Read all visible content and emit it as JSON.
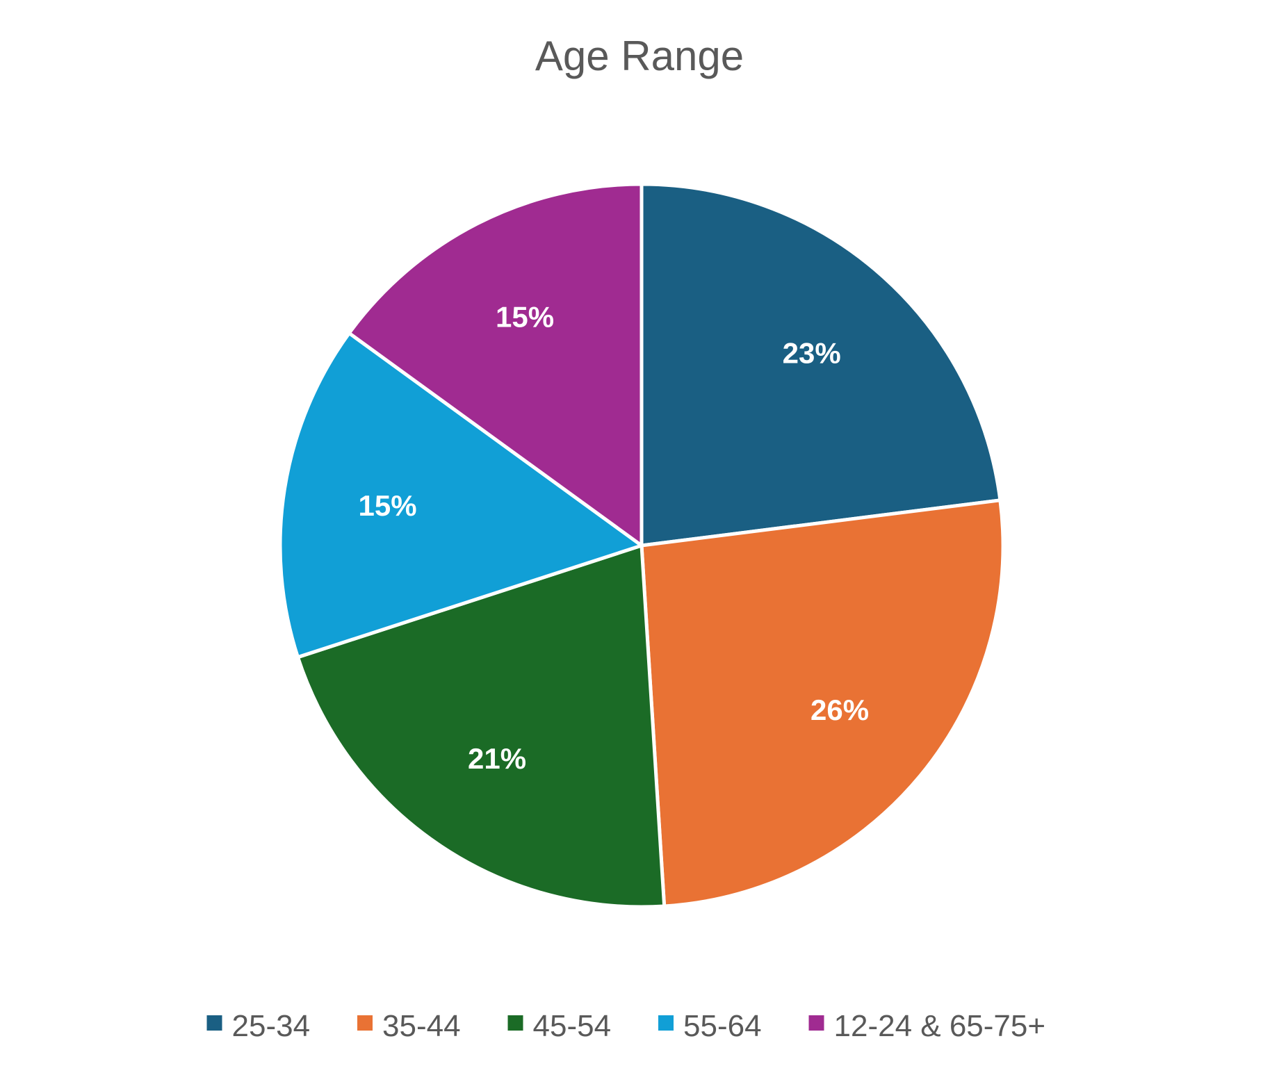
{
  "chart_data": {
    "type": "pie",
    "title": "Age Range",
    "categories": [
      "25-34",
      "35-44",
      "45-54",
      "55-64",
      "12-24 & 65-75+"
    ],
    "values": [
      23,
      26,
      21,
      15,
      15
    ],
    "labels": [
      "23%",
      "26%",
      "21%",
      "15%",
      "15%"
    ],
    "colors": [
      "#1A5F83",
      "#E97234",
      "#1B6B26",
      "#119FD6",
      "#A02B91"
    ],
    "legend_position": "bottom"
  }
}
